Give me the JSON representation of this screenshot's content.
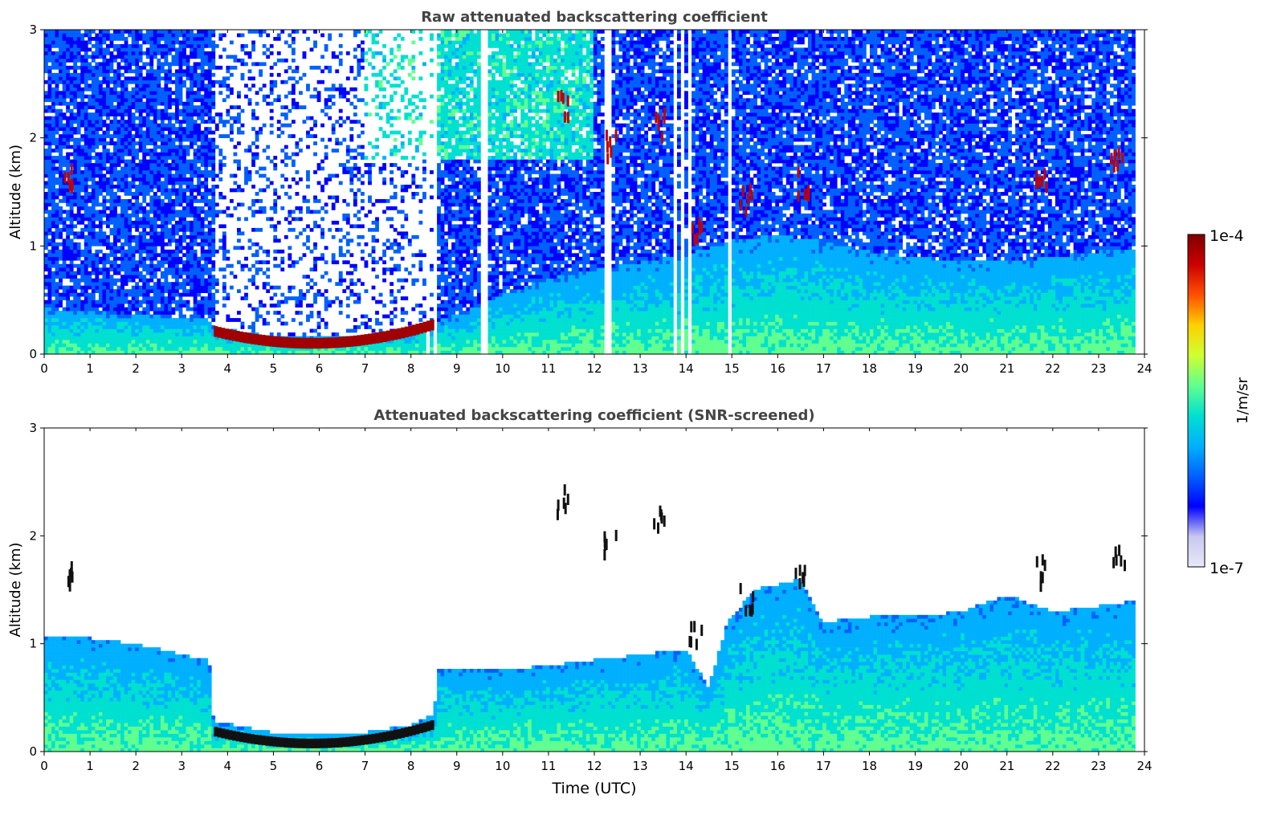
{
  "chart_data": [
    {
      "type": "heatmap",
      "title": "Raw attenuated backscattering coefficient",
      "xlabel": "",
      "ylabel": "Altitude (km)",
      "xlim": [
        0,
        24
      ],
      "ylim": [
        0,
        3
      ],
      "xticks": [
        "0",
        "1",
        "2",
        "3",
        "4",
        "5",
        "6",
        "7",
        "8",
        "9",
        "10",
        "11",
        "12",
        "13",
        "14",
        "15",
        "16",
        "17",
        "18",
        "19",
        "20",
        "21",
        "22",
        "23",
        "24"
      ],
      "yticks": [
        "0",
        "1",
        "2",
        "3"
      ],
      "data_extent_x": [
        0,
        23.8
      ],
      "gaps_x": [
        8.4,
        8.5,
        9.6,
        12.3,
        13.75,
        13.95,
        14.1,
        14.95
      ],
      "low_layer_top_km": [
        [
          0,
          0.42
        ],
        [
          1,
          0.4
        ],
        [
          2,
          0.36
        ],
        [
          3,
          0.34
        ],
        [
          3.6,
          0.32
        ],
        [
          3.7,
          0.25
        ],
        [
          5,
          0.16
        ],
        [
          6,
          0.15
        ],
        [
          7,
          0.17
        ],
        [
          8,
          0.22
        ],
        [
          8.5,
          0.3
        ],
        [
          9,
          0.36
        ],
        [
          10,
          0.55
        ],
        [
          11,
          0.7
        ],
        [
          12,
          0.78
        ],
        [
          13,
          0.85
        ],
        [
          14,
          0.92
        ],
        [
          15,
          1.05
        ],
        [
          16,
          1.1
        ],
        [
          17,
          1.05
        ],
        [
          18,
          0.95
        ],
        [
          19,
          0.9
        ],
        [
          20,
          0.85
        ],
        [
          21,
          0.85
        ],
        [
          22,
          0.9
        ],
        [
          23,
          0.95
        ],
        [
          23.8,
          0.95
        ]
      ],
      "strong_layer": {
        "x_range": [
          3.7,
          8.5
        ],
        "altitude_km": [
          0.05,
          0.28
        ],
        "value": "1e-4"
      },
      "cloud_features": [
        {
          "x": 0.55,
          "y": 1.65
        },
        {
          "x": 11.3,
          "y": 2.3
        },
        {
          "x": 12.3,
          "y": 1.9
        },
        {
          "x": 13.4,
          "y": 2.1
        },
        {
          "x": 14.2,
          "y": 1.1
        },
        {
          "x": 15.3,
          "y": 1.4
        },
        {
          "x": 16.5,
          "y": 1.55
        },
        {
          "x": 21.7,
          "y": 1.65
        },
        {
          "x": 23.4,
          "y": 1.8
        }
      ],
      "noise": "strong"
    },
    {
      "type": "heatmap",
      "title": "Attenuated backscattering coefficient (SNR-screened)",
      "xlabel": "Time (UTC)",
      "ylabel": "Altitude (km)",
      "xlim": [
        0,
        24
      ],
      "ylim": [
        0,
        3
      ],
      "xticks": [
        "0",
        "1",
        "2",
        "3",
        "4",
        "5",
        "6",
        "7",
        "8",
        "9",
        "10",
        "11",
        "12",
        "13",
        "14",
        "15",
        "16",
        "17",
        "18",
        "19",
        "20",
        "21",
        "22",
        "23",
        "24"
      ],
      "yticks": [
        "0",
        "1",
        "2",
        "3"
      ],
      "data_extent_x": [
        0,
        23.8
      ],
      "screened": true,
      "screened_layer_top_km": [
        [
          0,
          1.05
        ],
        [
          1,
          1.05
        ],
        [
          2,
          1.0
        ],
        [
          3,
          0.9
        ],
        [
          3.6,
          0.85
        ],
        [
          3.7,
          0.28
        ],
        [
          5,
          0.18
        ],
        [
          6,
          0.17
        ],
        [
          7,
          0.18
        ],
        [
          8,
          0.25
        ],
        [
          8.5,
          0.35
        ],
        [
          8.6,
          0.75
        ],
        [
          10,
          0.75
        ],
        [
          11,
          0.8
        ],
        [
          12,
          0.85
        ],
        [
          13,
          0.9
        ],
        [
          14,
          0.95
        ],
        [
          14.5,
          0.6
        ],
        [
          14.9,
          1.2
        ],
        [
          15.5,
          1.5
        ],
        [
          16.5,
          1.6
        ],
        [
          17,
          1.2
        ],
        [
          18,
          1.25
        ],
        [
          19,
          1.25
        ],
        [
          20,
          1.3
        ],
        [
          21,
          1.45
        ],
        [
          22,
          1.3
        ],
        [
          23,
          1.35
        ],
        [
          23.8,
          1.4
        ]
      ],
      "noise": "low"
    }
  ],
  "colorbar": {
    "label": "1/m/sr",
    "max_label": "1e-4",
    "min_label": "1e-7",
    "colormap": [
      "#e8e8f8",
      "#c8c8f0",
      "#0000ff",
      "#0060ff",
      "#00b0ff",
      "#00e0d0",
      "#60ff90",
      "#d0ff30",
      "#ffd000",
      "#ff5000",
      "#cc0000",
      "#800000"
    ]
  }
}
